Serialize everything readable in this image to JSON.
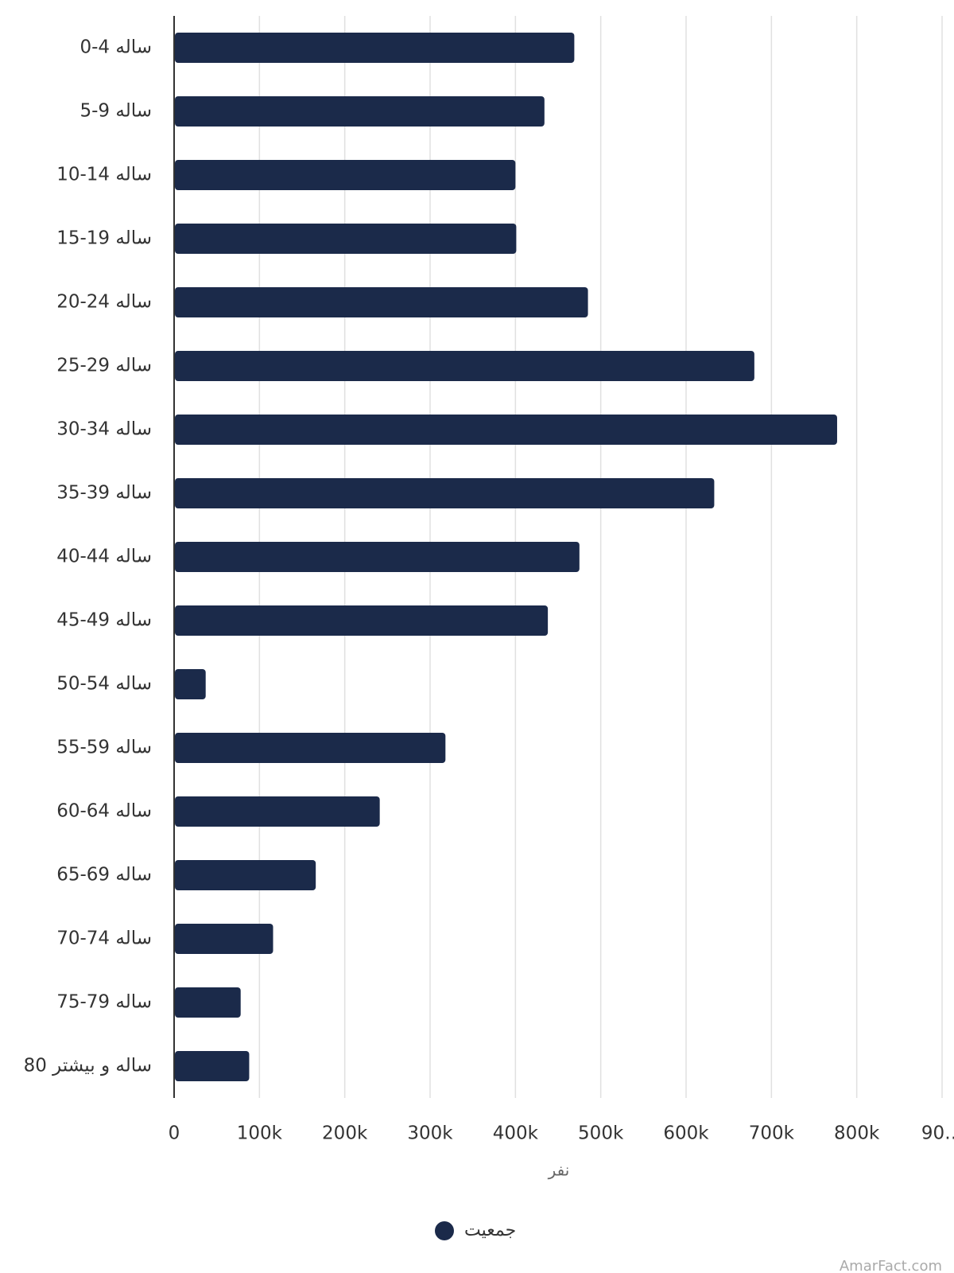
{
  "chart_data": {
    "type": "bar",
    "orientation": "horizontal",
    "categories": [
      "0-4 ساله",
      "5-9 ساله",
      "10-14 ساله",
      "15-19 ساله",
      "20-24 ساله",
      "25-29 ساله",
      "30-34 ساله",
      "35-39 ساله",
      "40-44 ساله",
      "45-49 ساله",
      "50-54 ساله",
      "55-59 ساله",
      "60-64 ساله",
      "65-69 ساله",
      "70-74 ساله",
      "75-79 ساله",
      "80 ساله و بیشتر"
    ],
    "series": [
      {
        "name": "جمعیت",
        "color": "#1b2a4a",
        "values": [
          469000,
          434000,
          400000,
          401000,
          485000,
          680000,
          777000,
          633000,
          475000,
          438000,
          37000,
          318000,
          241000,
          166000,
          116000,
          78000,
          88000
        ]
      }
    ],
    "xlim": [
      0,
      900000
    ],
    "xticks": [
      0,
      {
        "value": 100000,
        "label": "100k"
      },
      {
        "value": 200000,
        "label": "200k"
      },
      {
        "value": 300000,
        "label": "300k"
      },
      {
        "value": 400000,
        "label": "400k"
      },
      {
        "value": 500000,
        "label": "500k"
      },
      {
        "value": 600000,
        "label": "600k"
      },
      {
        "value": 700000,
        "label": "700k"
      },
      {
        "value": 800000,
        "label": "800k"
      },
      {
        "value": 900000,
        "label": "90…"
      }
    ],
    "xlabel": "نفر",
    "grid": true,
    "legend": "bottom",
    "watermark": "AmarFact.com"
  }
}
